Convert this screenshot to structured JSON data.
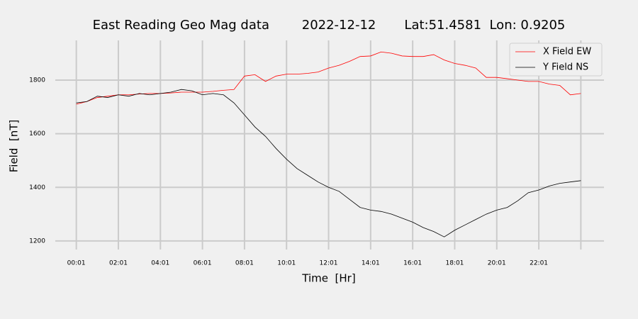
{
  "chart_data": {
    "type": "line",
    "title": "East Reading Geo Mag data        2022-12-12       Lat:51.4581  Lon: 0.9205",
    "x_label": "Time  [Hr]",
    "y_label": "Field  [nT]",
    "x": [
      0,
      0.5,
      1,
      1.5,
      2,
      2.5,
      3,
      3.5,
      4,
      4.5,
      5,
      5.5,
      6,
      6.5,
      7,
      7.5,
      8,
      8.5,
      9,
      9.5,
      10,
      10.5,
      11,
      11.5,
      12,
      12.5,
      13,
      13.5,
      14,
      14.5,
      15,
      15.5,
      16,
      16.5,
      17,
      17.5,
      18,
      18.5,
      19,
      19.5,
      20,
      20.5,
      21,
      21.5,
      22,
      22.5,
      23,
      23.5,
      24
    ],
    "series": [
      {
        "name": "X Field EW",
        "color": "#ff0000",
        "values": [
          1710,
          1720,
          1735,
          1740,
          1745,
          1745,
          1748,
          1750,
          1750,
          1752,
          1755,
          1755,
          1755,
          1758,
          1762,
          1765,
          1815,
          1820,
          1795,
          1815,
          1822,
          1822,
          1825,
          1830,
          1845,
          1855,
          1870,
          1888,
          1890,
          1905,
          1900,
          1890,
          1888,
          1888,
          1895,
          1875,
          1862,
          1855,
          1845,
          1810,
          1810,
          1805,
          1800,
          1795,
          1795,
          1785,
          1780,
          1745,
          1750
        ]
      },
      {
        "name": "Y Field NS",
        "color": "#000000",
        "values": [
          1715,
          1720,
          1740,
          1735,
          1745,
          1740,
          1750,
          1745,
          1750,
          1755,
          1765,
          1760,
          1745,
          1750,
          1745,
          1715,
          1670,
          1625,
          1590,
          1545,
          1505,
          1470,
          1445,
          1420,
          1400,
          1385,
          1355,
          1325,
          1315,
          1310,
          1300,
          1285,
          1270,
          1250,
          1235,
          1215,
          1240,
          1260,
          1280,
          1300,
          1315,
          1325,
          1350,
          1380,
          1390,
          1405,
          1415,
          1420,
          1425
        ]
      }
    ],
    "xlim": [
      -1.0,
      25.1
    ],
    "ylim": [
      1168,
      1948
    ],
    "xticks": [
      {
        "value": 0,
        "label": "00:01"
      },
      {
        "value": 2,
        "label": "02:01"
      },
      {
        "value": 4,
        "label": "04:01"
      },
      {
        "value": 6,
        "label": "06:01"
      },
      {
        "value": 8,
        "label": "08:01"
      },
      {
        "value": 10,
        "label": "10:01"
      },
      {
        "value": 12,
        "label": "12:01"
      },
      {
        "value": 14,
        "label": "14:01"
      },
      {
        "value": 16,
        "label": "16:01"
      },
      {
        "value": 18,
        "label": "18:01"
      },
      {
        "value": 20,
        "label": "20:01"
      },
      {
        "value": 22,
        "label": "22:01"
      },
      {
        "value": 24,
        "label": null
      }
    ],
    "yticks": [
      1200,
      1400,
      1600,
      1800
    ],
    "grid": true,
    "legend": "upper right"
  }
}
